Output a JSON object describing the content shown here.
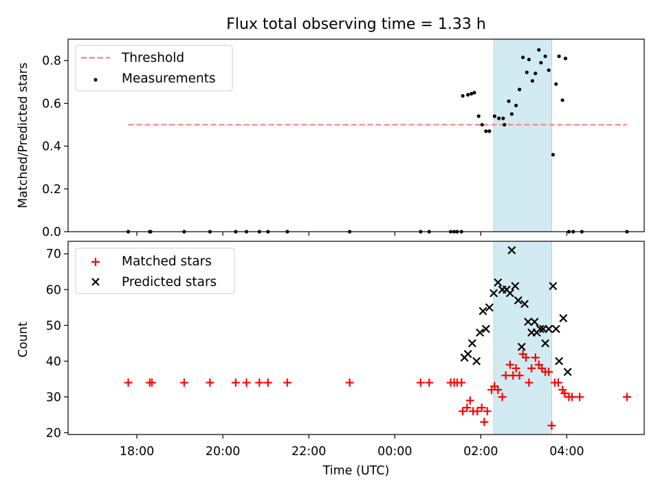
{
  "figure": {
    "title": "Flux total observing time = 1.33 h",
    "xlabel": "Time (UTC)",
    "x_unit": "hours relative to 00:00 UTC",
    "xlim": [
      -7.6,
      5.8
    ],
    "x_ticks": [
      -6,
      -4,
      -2,
      0,
      2,
      4
    ],
    "x_tick_labels": [
      "18:00",
      "20:00",
      "22:00",
      "00:00",
      "02:00",
      "04:00"
    ],
    "shaded_span": [
      2.3,
      3.65
    ],
    "colors": {
      "shade": "#add8e6",
      "threshold": "#ff7f7f",
      "matched": "#ff0000",
      "predicted": "#000000",
      "measurement": "#000000"
    }
  },
  "chart_data": [
    {
      "type": "scatter",
      "name": "ratio",
      "ylabel": "Matched/Predicted stars",
      "ylim": [
        0,
        0.9
      ],
      "y_ticks": [
        0,
        0.2,
        0.4,
        0.6,
        0.8
      ],
      "y_tick_labels": [
        "0.0",
        "0.2",
        "0.4",
        "0.6",
        "0.8"
      ],
      "legend": [
        "Threshold",
        "Measurements"
      ],
      "legend_position": "upper-left",
      "threshold": {
        "label": "Threshold",
        "y": 0.5,
        "x_range": [
          -6.2,
          5.4
        ]
      },
      "measurements": {
        "label": "Measurements",
        "x": [
          -6.2,
          -5.7,
          -5.68,
          -4.9,
          -4.3,
          -3.7,
          -3.45,
          -3.15,
          -2.95,
          -2.5,
          -1.05,
          0.6,
          0.8,
          1.3,
          1.38,
          1.45,
          1.55,
          1.58,
          1.7,
          1.78,
          1.85,
          1.95,
          2.03,
          2.12,
          2.2,
          2.32,
          2.42,
          2.52,
          2.55,
          2.65,
          2.72,
          2.82,
          2.9,
          2.98,
          3.07,
          3.12,
          3.2,
          3.27,
          3.35,
          3.4,
          3.5,
          3.58,
          3.68,
          3.75,
          3.82,
          3.9,
          3.97,
          4.05,
          4.15,
          4.35,
          5.4
        ],
        "y": [
          0,
          0,
          0,
          0,
          0,
          0,
          0,
          0,
          0,
          0,
          0,
          0,
          0,
          0,
          0,
          0,
          0,
          0.635,
          0.64,
          0.645,
          0.65,
          0.54,
          0.5,
          0.47,
          0.47,
          0.54,
          0.53,
          0.53,
          0.5,
          0.61,
          0.55,
          0.59,
          0.665,
          0.815,
          0.745,
          0.805,
          0.705,
          0.74,
          0.85,
          0.79,
          0.82,
          0.755,
          0.36,
          0.69,
          0.82,
          0.615,
          0.81,
          0,
          0,
          0,
          0
        ]
      }
    },
    {
      "type": "scatter",
      "name": "counts",
      "ylabel": "Count",
      "ylim": [
        19.5,
        73.5
      ],
      "y_ticks": [
        20,
        30,
        40,
        50,
        60,
        70
      ],
      "y_tick_labels": [
        "20",
        "30",
        "40",
        "50",
        "60",
        "70"
      ],
      "legend": [
        "Matched stars",
        "Predicted stars"
      ],
      "legend_position": "upper-left",
      "series": [
        {
          "name": "Matched stars",
          "marker": "+",
          "x": [
            -6.2,
            -5.7,
            -5.65,
            -4.9,
            -4.3,
            -3.7,
            -3.45,
            -3.15,
            -2.95,
            -2.5,
            -1.05,
            0.6,
            0.8,
            1.3,
            1.38,
            1.45,
            1.55,
            1.58,
            1.68,
            1.75,
            1.82,
            1.92,
            2.02,
            2.08,
            2.15,
            2.25,
            2.32,
            2.4,
            2.5,
            2.58,
            2.68,
            2.75,
            2.82,
            2.9,
            2.98,
            3.05,
            3.12,
            3.18,
            3.27,
            3.35,
            3.42,
            3.5,
            3.58,
            3.65,
            3.72,
            3.8,
            3.9,
            3.95,
            4.05,
            4.12,
            4.3,
            5.4
          ],
          "y": [
            34,
            34,
            34,
            34,
            34,
            34,
            34,
            34,
            34,
            34,
            34,
            34,
            34,
            34,
            34,
            34,
            34,
            26,
            27,
            29,
            26,
            26,
            27,
            23,
            26,
            32,
            33,
            32,
            30,
            36,
            39,
            36,
            38,
            36,
            42,
            41,
            34,
            38,
            41,
            39,
            38,
            37,
            37,
            22,
            34,
            34,
            32,
            31,
            30,
            30,
            30,
            30
          ]
        },
        {
          "name": "Predicted stars",
          "marker": "x",
          "x": [
            1.62,
            1.7,
            1.8,
            1.9,
            1.98,
            2.05,
            2.12,
            2.2,
            2.3,
            2.4,
            2.5,
            2.6,
            2.68,
            2.72,
            2.8,
            2.87,
            2.95,
            3.02,
            3.1,
            3.18,
            3.25,
            3.3,
            3.38,
            3.45,
            3.5,
            3.58,
            3.68,
            3.75,
            3.82,
            3.92,
            4.02
          ],
          "y": [
            41,
            42,
            45,
            40,
            48,
            54,
            49,
            55,
            59,
            62,
            60,
            60,
            59,
            71,
            61,
            57,
            44,
            56,
            51,
            48,
            51,
            48,
            49,
            49,
            45,
            49,
            61,
            49,
            40,
            52,
            37
          ]
        }
      ]
    }
  ]
}
